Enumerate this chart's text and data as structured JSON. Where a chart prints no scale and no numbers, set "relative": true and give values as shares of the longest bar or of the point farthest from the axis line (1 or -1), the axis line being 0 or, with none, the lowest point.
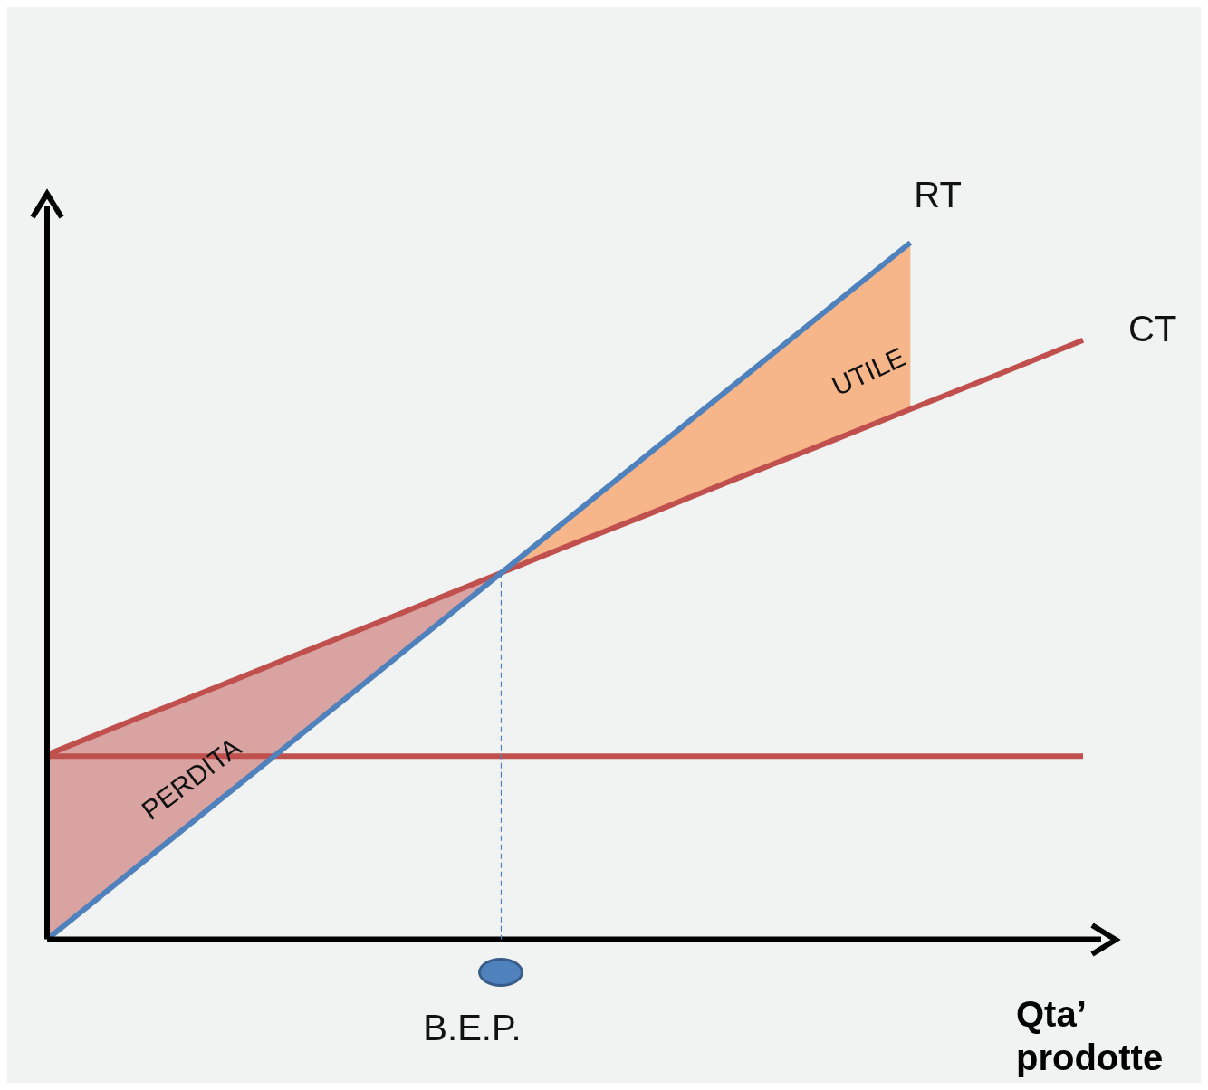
{
  "chart_data": {
    "type": "line",
    "relative": true,
    "xlabel": "Qta’ prodotte",
    "legend": false,
    "marker": "none",
    "line_style": "solid",
    "categories": [
      null,
      null,
      null,
      null,
      null,
      null,
      null,
      null,
      null,
      null,
      null,
      null,
      null
    ],
    "series": [
      {
        "name": "RT",
        "color": "#4f81bd",
        "values": [
          0,
          0.1,
          0.2,
          0.3,
          0.4,
          0.5,
          0.6,
          0.7,
          0.8,
          0.9,
          1.0,
          null,
          null
        ]
      },
      {
        "name": "CT",
        "color": "#c0504d",
        "values": [
          0.265,
          0.315,
          0.364,
          0.414,
          0.463,
          0.513,
          0.563,
          0.612,
          0.662,
          0.711,
          0.761,
          0.81,
          0.86
        ]
      },
      {
        "color": "#c0504d",
        "values": [
          0.263,
          0.263,
          0.263,
          0.263,
          0.263,
          0.263,
          0.263,
          0.263,
          0.263,
          0.263,
          0.263,
          0.263,
          0.263
        ]
      }
    ],
    "annotations": [
      "PERDITA",
      "UTILE",
      "B.E.P."
    ]
  }
}
